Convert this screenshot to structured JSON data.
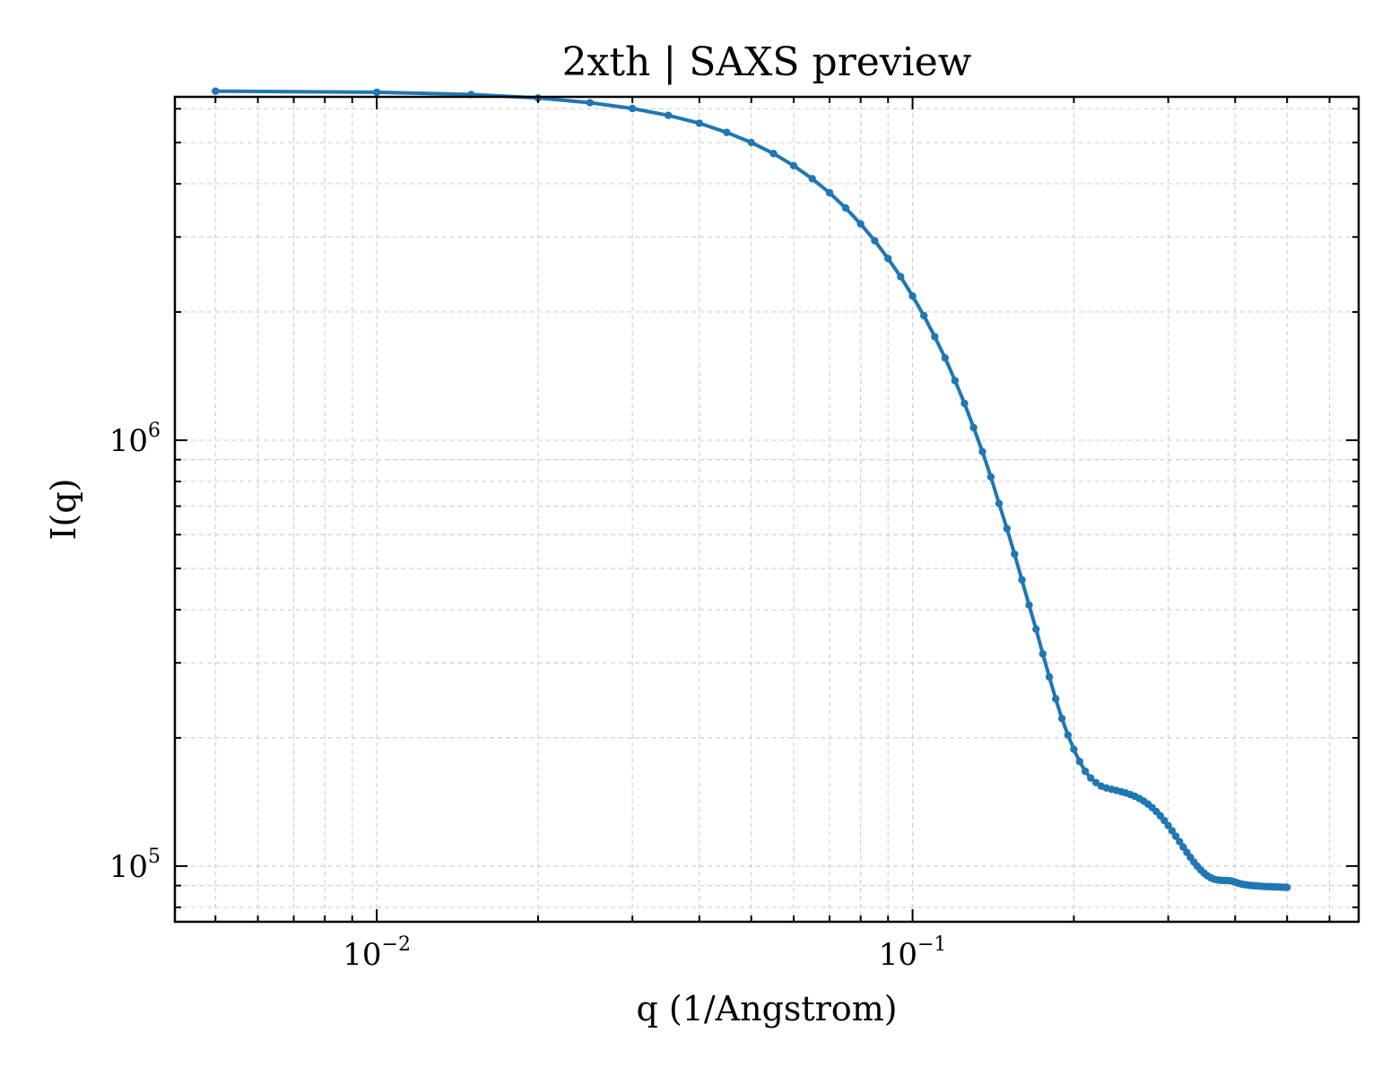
{
  "chart_data": {
    "type": "line",
    "title": "2xth | SAXS preview",
    "xlabel": "q (1/Angstrom)",
    "ylabel": "I(q)",
    "xscale": "log",
    "yscale": "log",
    "xlim": [
      0.0042,
      0.68
    ],
    "ylim": [
      74000,
      6400000
    ],
    "grid": true,
    "color": "#1f77b4",
    "x_ticks": [
      {
        "value": 0.01,
        "base": "10",
        "exp": "−2"
      },
      {
        "value": 0.1,
        "base": "10",
        "exp": "−1"
      }
    ],
    "y_ticks": [
      {
        "value": 100000,
        "base": "10",
        "exp": "5"
      },
      {
        "value": 1000000,
        "base": "10",
        "exp": "6"
      }
    ],
    "series": [
      {
        "x": [
          0.005,
          0.01,
          0.015,
          0.02,
          0.025,
          0.03,
          0.035,
          0.04,
          0.045,
          0.05,
          0.055,
          0.06,
          0.065,
          0.07,
          0.075,
          0.08,
          0.085,
          0.09,
          0.095,
          0.1,
          0.105,
          0.11,
          0.115,
          0.12,
          0.125,
          0.13,
          0.135,
          0.14,
          0.145,
          0.15,
          0.155,
          0.16,
          0.165,
          0.17,
          0.175,
          0.18,
          0.185,
          0.19,
          0.195,
          0.2,
          0.205,
          0.21,
          0.215,
          0.22,
          0.225,
          0.23,
          0.235,
          0.24,
          0.245,
          0.25,
          0.255,
          0.26,
          0.265,
          0.27,
          0.275,
          0.28,
          0.285,
          0.29,
          0.295,
          0.3,
          0.305,
          0.31,
          0.315,
          0.32,
          0.325,
          0.33,
          0.335,
          0.34,
          0.345,
          0.35,
          0.355,
          0.36,
          0.365,
          0.37,
          0.375,
          0.38,
          0.385,
          0.39,
          0.395,
          0.4,
          0.405,
          0.41,
          0.415,
          0.42,
          0.425,
          0.43,
          0.435,
          0.44,
          0.445,
          0.45,
          0.455,
          0.46,
          0.465,
          0.47,
          0.475,
          0.48,
          0.485,
          0.49,
          0.495,
          0.5
        ],
        "y": [
          6600000,
          6560000,
          6480000,
          6360000,
          6200000,
          6010000,
          5790000,
          5550000,
          5280000,
          5000000,
          4710000,
          4410000,
          4110000,
          3810000,
          3510000,
          3220000,
          2940000,
          2670000,
          2420000,
          2180000,
          1960000,
          1750000,
          1560000,
          1380000,
          1220000,
          1070000,
          940000,
          820000,
          710000,
          620000,
          540000,
          470000,
          410000,
          360000,
          315000,
          278000,
          247000,
          222000,
          203000,
          188000,
          176000,
          167000,
          161000,
          157000,
          154000,
          152500,
          151500,
          150500,
          149500,
          148500,
          147200,
          145800,
          144100,
          142100,
          139800,
          137200,
          134300,
          131200,
          127900,
          124500,
          121000,
          117500,
          114100,
          110800,
          107700,
          104800,
          102200,
          99900,
          97900,
          96200,
          94900,
          93900,
          93200,
          92800,
          92600,
          92500,
          92500,
          92400,
          92200,
          91700,
          91200,
          90800,
          90500,
          90300,
          90150,
          90000,
          89900,
          89800,
          89700,
          89600,
          89550,
          89500,
          89450,
          89400,
          89350,
          89300,
          89250,
          89200,
          89150,
          89100
        ]
      }
    ]
  }
}
